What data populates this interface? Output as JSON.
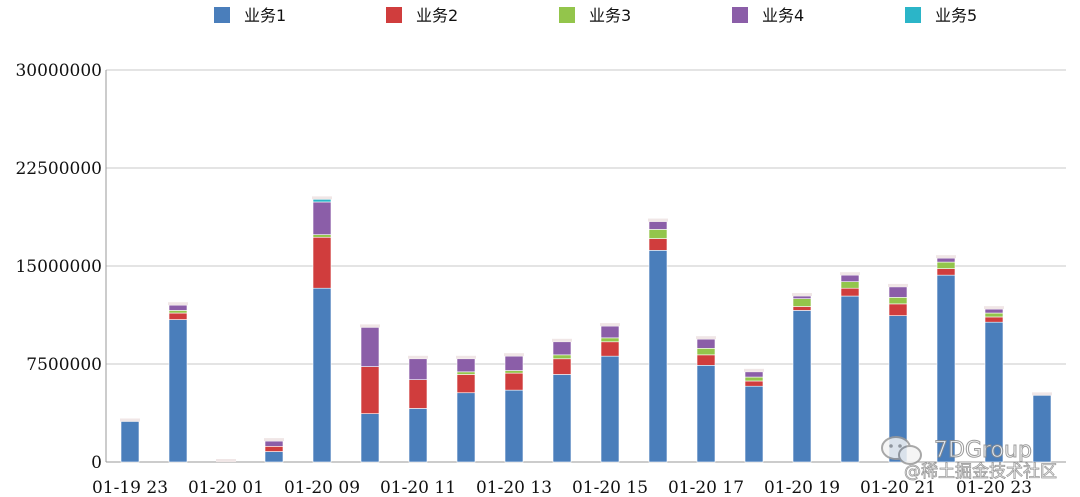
{
  "chart_data": {
    "type": "bar",
    "stacked": true,
    "title": "",
    "xlabel": "",
    "ylabel": "",
    "ylim": [
      0,
      30000000
    ],
    "y_ticks": [
      0,
      7500000,
      15000000,
      22500000,
      30000000
    ],
    "y_tick_labels": [
      "0",
      "7500000",
      "15000000",
      "22500000",
      "30000000"
    ],
    "grid": true,
    "legend_position": "top",
    "x_tick_labels": [
      "01-19 23",
      "01-20 01",
      "01-20 09",
      "01-20 11",
      "01-20 13",
      "01-20 15",
      "01-20 17",
      "01-20 19",
      "01-20 21",
      "01-20 23"
    ],
    "categories": [
      "01-19 23",
      "01-20 00",
      "01-20 01",
      "01-20 02",
      "01-20 09",
      "01-20 10",
      "01-20 11",
      "01-20 12",
      "01-20 13",
      "01-20 14",
      "01-20 15",
      "01-20 16",
      "01-20 17",
      "01-20 18",
      "01-20 19",
      "01-20 20",
      "01-20 21",
      "01-20 22",
      "01-20 23",
      "01-21 00"
    ],
    "series": [
      {
        "name": "业务1",
        "color": "#4a7ebb",
        "values": [
          3100000,
          10900000,
          0,
          800000,
          13300000,
          3700000,
          4100000,
          5300000,
          5500000,
          6700000,
          8100000,
          16200000,
          7400000,
          5800000,
          11600000,
          12700000,
          11200000,
          14300000,
          10700000,
          5100000
        ]
      },
      {
        "name": "业务2",
        "color": "#d03d3d",
        "values": [
          0,
          500000,
          0,
          400000,
          3900000,
          3600000,
          2200000,
          1400000,
          1300000,
          1200000,
          1100000,
          900000,
          800000,
          400000,
          300000,
          600000,
          900000,
          500000,
          400000,
          0
        ]
      },
      {
        "name": "业务3",
        "color": "#93c54b",
        "values": [
          0,
          200000,
          0,
          0,
          200000,
          0,
          0,
          200000,
          200000,
          300000,
          300000,
          700000,
          500000,
          300000,
          600000,
          500000,
          500000,
          500000,
          300000,
          0
        ]
      },
      {
        "name": "业务4",
        "color": "#8b5ea8",
        "values": [
          0,
          400000,
          0,
          400000,
          2500000,
          3000000,
          1600000,
          1000000,
          1100000,
          1000000,
          900000,
          600000,
          700000,
          400000,
          200000,
          500000,
          800000,
          300000,
          300000,
          0
        ]
      },
      {
        "name": "业务5",
        "color": "#2bb5c8",
        "values": [
          0,
          0,
          0,
          0,
          200000,
          0,
          0,
          0,
          0,
          0,
          0,
          0,
          0,
          0,
          0,
          0,
          0,
          0,
          0,
          0
        ]
      }
    ]
  },
  "watermark": {
    "brand": "7DGroup",
    "source": "@稀土掘金技术社区"
  }
}
